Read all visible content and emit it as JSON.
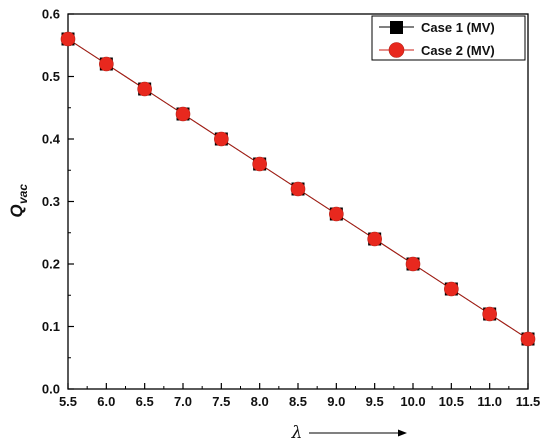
{
  "chart_data": {
    "type": "line",
    "xlabel_symbol": "λ",
    "ylabel_main": "Q",
    "ylabel_sub": "vac",
    "xlim": [
      5.5,
      11.5
    ],
    "ylim": [
      0.0,
      0.6
    ],
    "x_ticks": [
      "5.5",
      "6.0",
      "6.5",
      "7.0",
      "7.5",
      "8.0",
      "8.5",
      "9.0",
      "9.5",
      "10.0",
      "10.5",
      "11.0",
      "11.5"
    ],
    "y_ticks": [
      "0.0",
      "0.1",
      "0.2",
      "0.3",
      "0.4",
      "0.5",
      "0.6"
    ],
    "x": [
      5.5,
      6.0,
      6.5,
      7.0,
      7.5,
      8.0,
      8.5,
      9.0,
      9.5,
      10.0,
      10.5,
      11.0,
      11.5
    ],
    "series": [
      {
        "name": "Case 1 (MV)",
        "marker": "square",
        "color": "#000000",
        "values": [
          0.56,
          0.52,
          0.48,
          0.44,
          0.4,
          0.36,
          0.32,
          0.28,
          0.24,
          0.2,
          0.16,
          0.12,
          0.08
        ]
      },
      {
        "name": "Case 2 (MV)",
        "marker": "circle",
        "color": "#e8281e",
        "values": [
          0.56,
          0.52,
          0.48,
          0.44,
          0.4,
          0.36,
          0.32,
          0.28,
          0.24,
          0.2,
          0.16,
          0.12,
          0.08
        ]
      }
    ],
    "legend_position": "top-right",
    "grid": false
  }
}
